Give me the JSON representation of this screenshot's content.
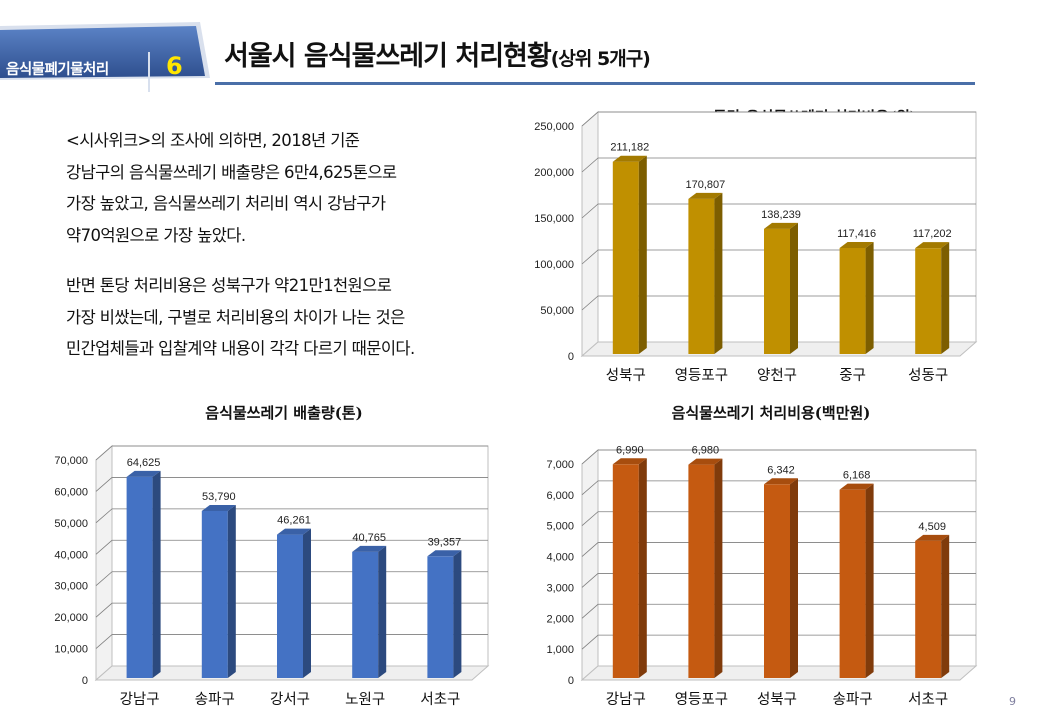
{
  "header": {
    "section_label": "음식물폐기물처리",
    "section_number": "6",
    "title": "서울시 음식물쓰레기 처리현황",
    "title_sub": "(상위 5개구)"
  },
  "body_text": {
    "paragraph1": [
      "<시사위크>의 조사에 의하면, 2018년 기준",
      "강남구의 음식물쓰레기 배출량은 6만4,625톤으로",
      "가장 높았고, 음식물쓰레기 처리비 역시 강남구가",
      "약70억원으로 가장 높았다."
    ],
    "paragraph2": [
      "반면 톤당 처리비용은 성북구가 약21만1천원으로",
      "가장 비쌌는데, 구별로 처리비용의 차이가 나는 것은",
      "민간업체들과 입찰계약 내용이 각각 다르기 때문이다."
    ]
  },
  "page_number": "9",
  "chart_data": [
    {
      "id": "cost_per_ton",
      "type": "bar",
      "title": "톤당 음식물쓰레기 처리비용(원)",
      "categories": [
        "성북구",
        "영등포구",
        "양천구",
        "중구",
        "성동구"
      ],
      "values": [
        211182,
        170807,
        138239,
        117416,
        117202
      ],
      "value_labels": [
        "211,182",
        "170,807",
        "138,239",
        "117,416",
        "117,202"
      ],
      "ylim": [
        0,
        250000
      ],
      "yticks": [
        0,
        50000,
        100000,
        150000,
        200000,
        250000
      ],
      "ytick_labels": [
        "0",
        "50,000",
        "100,000",
        "150,000",
        "200,000",
        "250,000"
      ],
      "color": "#c09000",
      "grid": true,
      "xlabel": "",
      "ylabel": ""
    },
    {
      "id": "emissions",
      "type": "bar",
      "title": "음식물쓰레기 배출량(톤)",
      "categories": [
        "강남구",
        "송파구",
        "강서구",
        "노원구",
        "서초구"
      ],
      "values": [
        64625,
        53790,
        46261,
        40765,
        39357
      ],
      "value_labels": [
        "64,625",
        "53,790",
        "46,261",
        "40,765",
        "39,357"
      ],
      "ylim": [
        0,
        70000
      ],
      "yticks": [
        0,
        10000,
        20000,
        30000,
        40000,
        50000,
        60000,
        70000
      ],
      "ytick_labels": [
        "0",
        "10,000",
        "20,000",
        "30,000",
        "40,000",
        "50,000",
        "60,000",
        "70,000"
      ],
      "color": "#4472c4",
      "grid": true,
      "xlabel": "",
      "ylabel": ""
    },
    {
      "id": "total_cost",
      "type": "bar",
      "title": "음식물쓰레기 처리비용(백만원)",
      "categories": [
        "강남구",
        "영등포구",
        "성북구",
        "송파구",
        "서초구"
      ],
      "values": [
        6990,
        6980,
        6342,
        6168,
        4509
      ],
      "value_labels": [
        "6,990",
        "6,980",
        "6,342",
        "6,168",
        "4,509"
      ],
      "ylim": [
        0,
        7000
      ],
      "yticks": [
        0,
        1000,
        2000,
        3000,
        4000,
        5000,
        6000,
        7000
      ],
      "ytick_labels": [
        "0",
        "1,000",
        "2,000",
        "3,000",
        "4,000",
        "5,000",
        "6,000",
        "7,000"
      ],
      "color": "#c55a11",
      "grid": true,
      "xlabel": "",
      "ylabel": ""
    }
  ]
}
